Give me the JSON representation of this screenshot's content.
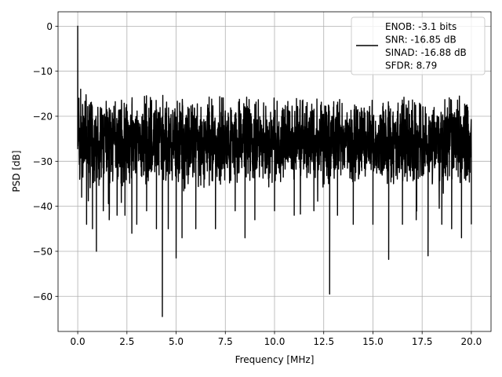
{
  "chart_data": {
    "type": "line",
    "title": "",
    "xlabel": "Frequency [MHz]",
    "ylabel": "PSD [dB]",
    "xlim": [
      -1.0,
      21.0
    ],
    "ylim": [
      -67.8,
      3.2
    ],
    "x_ticks": [
      0.0,
      2.5,
      5.0,
      7.5,
      10.0,
      12.5,
      15.0,
      17.5,
      20.0
    ],
    "x_tick_labels": [
      "0.0",
      "2.5",
      "5.0",
      "7.5",
      "10.0",
      "12.5",
      "15.0",
      "17.5",
      "20.0"
    ],
    "y_ticks": [
      0,
      -10,
      -20,
      -30,
      -40,
      -50,
      -60
    ],
    "y_tick_labels": [
      "0",
      "−10",
      "−20",
      "−30",
      "−40",
      "−50",
      "−60"
    ],
    "grid": true,
    "legend_placement": "top-right",
    "series": [
      {
        "name": "ENOB: -3.1 bits\nSNR: -16.85 dB\nSINAD: -16.88 dB\nSFDR: 8.79",
        "color": "#000000",
        "noise_band_db": [
          -36,
          -15
        ],
        "x": [
          0.0,
          0.03,
          0.06,
          0.1,
          0.15,
          0.2,
          0.3,
          0.45,
          0.6,
          0.75,
          0.95,
          1.3,
          1.6,
          2.0,
          2.4,
          2.75,
          3.0,
          3.5,
          4.0,
          4.3,
          4.6,
          5.0,
          5.3,
          6.0,
          7.0,
          8.0,
          8.5,
          9.0,
          10.0,
          11.0,
          12.0,
          12.8,
          13.2,
          14.0,
          15.0,
          15.8,
          16.5,
          17.2,
          17.8,
          18.5,
          19.0,
          19.5,
          20.0
        ],
        "y": [
          0.0,
          -22.0,
          -16.0,
          -34.0,
          -14.0,
          -38.0,
          -20.0,
          -44.0,
          -22.0,
          -45.0,
          -50.0,
          -41.0,
          -43.0,
          -42.0,
          -42.0,
          -46.0,
          -44.0,
          -41.0,
          -45.0,
          -64.5,
          -45.0,
          -51.5,
          -47.0,
          -45.0,
          -45.0,
          -41.0,
          -47.0,
          -43.0,
          -41.0,
          -42.0,
          -41.0,
          -59.5,
          -42.0,
          -44.0,
          -44.0,
          -51.8,
          -44.0,
          -43.0,
          -51.0,
          -44.0,
          -45.0,
          -47.0,
          -44.0
        ]
      }
    ]
  }
}
